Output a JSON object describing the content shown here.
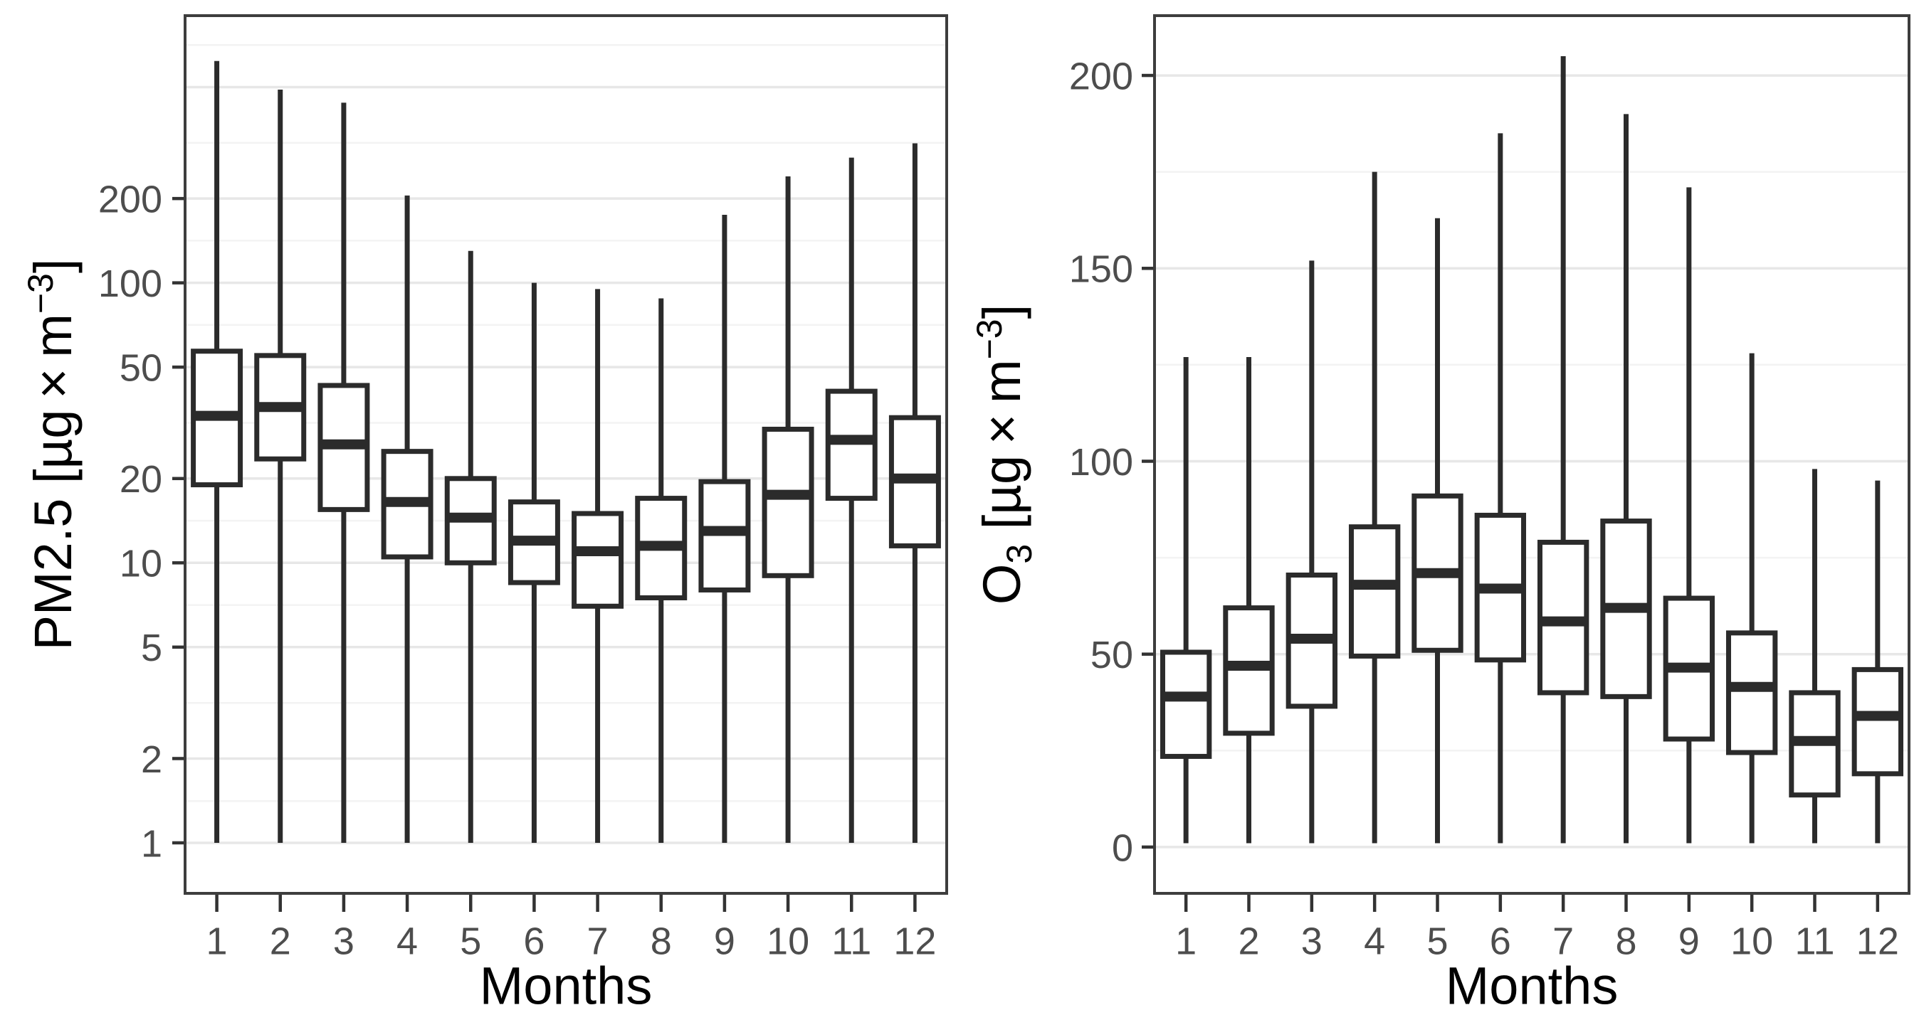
{
  "figure": {
    "background": "#ffffff",
    "x_axis_title": "Months",
    "x_tick_labels": [
      "1",
      "2",
      "3",
      "4",
      "5",
      "6",
      "7",
      "8",
      "9",
      "10",
      "11",
      "12"
    ]
  },
  "style": {
    "box_stroke": "#2b2b2b",
    "box_fill": "#ffffff",
    "grid_major": "#e7e7e7",
    "grid_minor": "#f3f3f3",
    "panel_border": "#3d3d3d",
    "tick_mark_color": "#333333",
    "tick_label_color": "#4d4d4d",
    "title_color": "#000000"
  },
  "chart_data": [
    {
      "type": "boxplot",
      "name": "pm25",
      "xlabel": "Months",
      "ylabel_segments": [
        {
          "t": "PM2.5 [µg × m"
        },
        {
          "t": "−3",
          "pos": "sup"
        },
        {
          "t": "]"
        }
      ],
      "y_scale": "log",
      "y_domain": [
        0.66,
        900
      ],
      "y_ticks": [
        1,
        2,
        5,
        10,
        20,
        50,
        100,
        200
      ],
      "y_tick_labels": [
        "1",
        "2",
        "5",
        "10",
        "20",
        "50",
        "100",
        "200"
      ],
      "y_major_gridlines": [
        1,
        2,
        5,
        10,
        20,
        50,
        100,
        200,
        500
      ],
      "y_minor_gridlines": [
        1.41,
        3.16,
        7.07,
        14.14,
        31.62,
        70.71,
        141.4,
        316.2,
        707
      ],
      "categories": [
        "1",
        "2",
        "3",
        "4",
        "5",
        "6",
        "7",
        "8",
        "9",
        "10",
        "11",
        "12"
      ],
      "boxes": [
        {
          "month": 1,
          "whisker_low": 1,
          "q1": 19.0,
          "median": 33.5,
          "q3": 57.0,
          "whisker_high": 620
        },
        {
          "month": 2,
          "whisker_low": 1,
          "q1": 23.5,
          "median": 36.0,
          "q3": 55.0,
          "whisker_high": 490
        },
        {
          "month": 3,
          "whisker_low": 1,
          "q1": 15.5,
          "median": 26.5,
          "q3": 43.0,
          "whisker_high": 440
        },
        {
          "month": 4,
          "whisker_low": 1,
          "q1": 10.5,
          "median": 16.5,
          "q3": 25.0,
          "whisker_high": 205
        },
        {
          "month": 5,
          "whisker_low": 1,
          "q1": 10.0,
          "median": 14.5,
          "q3": 20.0,
          "whisker_high": 130
        },
        {
          "month": 6,
          "whisker_low": 1,
          "q1": 8.5,
          "median": 12.0,
          "q3": 16.5,
          "whisker_high": 100
        },
        {
          "month": 7,
          "whisker_low": 1,
          "q1": 7.0,
          "median": 11.0,
          "q3": 15.0,
          "whisker_high": 95
        },
        {
          "month": 8,
          "whisker_low": 1,
          "q1": 7.5,
          "median": 11.5,
          "q3": 17.0,
          "whisker_high": 88
        },
        {
          "month": 9,
          "whisker_low": 1,
          "q1": 8.0,
          "median": 13.0,
          "q3": 19.5,
          "whisker_high": 175
        },
        {
          "month": 10,
          "whisker_low": 1,
          "q1": 9.0,
          "median": 17.5,
          "q3": 30.0,
          "whisker_high": 240
        },
        {
          "month": 11,
          "whisker_low": 1,
          "q1": 17.0,
          "median": 27.5,
          "q3": 41.0,
          "whisker_high": 280
        },
        {
          "month": 12,
          "whisker_low": 1,
          "q1": 11.5,
          "median": 20.0,
          "q3": 33.0,
          "whisker_high": 315
        }
      ]
    },
    {
      "type": "boxplot",
      "name": "o3",
      "xlabel": "Months",
      "ylabel_segments": [
        {
          "t": "O"
        },
        {
          "t": "3",
          "pos": "sub"
        },
        {
          "t": "  [µg × m"
        },
        {
          "t": "−3",
          "pos": "sup"
        },
        {
          "t": "]"
        }
      ],
      "y_scale": "linear",
      "y_domain": [
        -12,
        215.5
      ],
      "y_ticks": [
        0,
        50,
        100,
        150,
        200
      ],
      "y_tick_labels": [
        "0",
        "50",
        "100",
        "150",
        "200"
      ],
      "y_major_gridlines": [
        0,
        50,
        100,
        150,
        200
      ],
      "y_minor_gridlines": [
        25,
        75,
        125,
        175
      ],
      "categories": [
        "1",
        "2",
        "3",
        "4",
        "5",
        "6",
        "7",
        "8",
        "9",
        "10",
        "11",
        "12"
      ],
      "boxes": [
        {
          "month": 1,
          "whisker_low": 1,
          "q1": 23.5,
          "median": 39.0,
          "q3": 50.5,
          "whisker_high": 127
        },
        {
          "month": 2,
          "whisker_low": 1,
          "q1": 29.5,
          "median": 47.0,
          "q3": 62.0,
          "whisker_high": 127
        },
        {
          "month": 3,
          "whisker_low": 1,
          "q1": 36.5,
          "median": 54.0,
          "q3": 70.5,
          "whisker_high": 152
        },
        {
          "month": 4,
          "whisker_low": 1,
          "q1": 49.5,
          "median": 68.0,
          "q3": 83.0,
          "whisker_high": 175
        },
        {
          "month": 5,
          "whisker_low": 1,
          "q1": 51.0,
          "median": 71.0,
          "q3": 91.0,
          "whisker_high": 163
        },
        {
          "month": 6,
          "whisker_low": 1,
          "q1": 48.5,
          "median": 67.0,
          "q3": 86.0,
          "whisker_high": 185
        },
        {
          "month": 7,
          "whisker_low": 1,
          "q1": 40.0,
          "median": 58.5,
          "q3": 79.0,
          "whisker_high": 205
        },
        {
          "month": 8,
          "whisker_low": 1,
          "q1": 39.0,
          "median": 62.0,
          "q3": 84.5,
          "whisker_high": 190
        },
        {
          "month": 9,
          "whisker_low": 1,
          "q1": 28.0,
          "median": 46.5,
          "q3": 64.5,
          "whisker_high": 171
        },
        {
          "month": 10,
          "whisker_low": 1,
          "q1": 24.5,
          "median": 41.5,
          "q3": 55.5,
          "whisker_high": 128
        },
        {
          "month": 11,
          "whisker_low": 1,
          "q1": 13.5,
          "median": 27.5,
          "q3": 40.0,
          "whisker_high": 98
        },
        {
          "month": 12,
          "whisker_low": 1,
          "q1": 19.0,
          "median": 34.0,
          "q3": 46.0,
          "whisker_high": 95
        }
      ]
    }
  ]
}
